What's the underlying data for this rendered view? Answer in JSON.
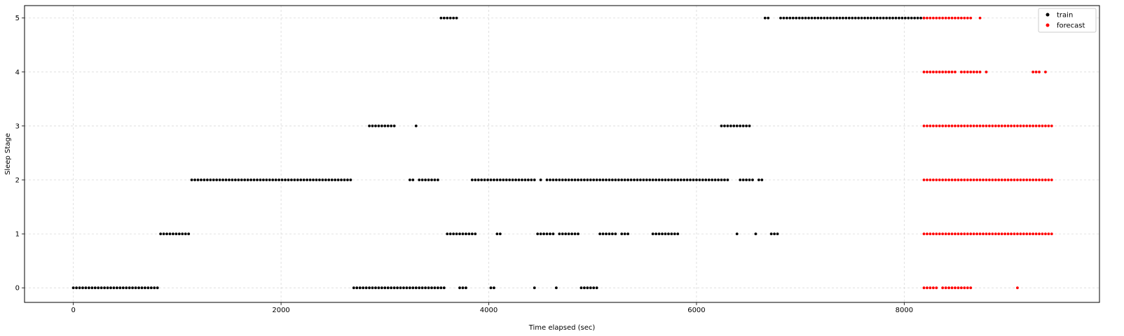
{
  "chart_data": {
    "type": "scatter",
    "title": "",
    "xlabel": "Time elapsed (sec)",
    "ylabel": "Sleep Stage",
    "xlim": [
      -470,
      9880
    ],
    "ylim": [
      -0.27,
      5.23
    ],
    "xticks": [
      0,
      2000,
      4000,
      6000,
      8000
    ],
    "yticks": [
      0,
      1,
      2,
      3,
      4,
      5
    ],
    "xtick_labels": [
      "0",
      "2000",
      "4000",
      "6000",
      "8000"
    ],
    "ytick_labels": [
      "0",
      "1",
      "2",
      "3",
      "4",
      "5"
    ],
    "grid": true,
    "legend_position": "top-right",
    "series": [
      {
        "name": "train",
        "color": "#000000",
        "segments": [
          {
            "y": 0,
            "x_start": 0,
            "x_end": 810,
            "step": 30
          },
          {
            "y": 1,
            "x_start": 840,
            "x_end": 1110,
            "step": 30
          },
          {
            "y": 2,
            "x_start": 1140,
            "x_end": 2670,
            "step": 30
          },
          {
            "y": 0,
            "x_start": 2700,
            "x_end": 3570,
            "step": 30
          },
          {
            "y": 3,
            "x_start": 2850,
            "x_end": 3090,
            "step": 30
          },
          {
            "y": 3,
            "x_start": 3300,
            "x_end": 3300,
            "step": 30
          },
          {
            "y": 2,
            "x_start": 3240,
            "x_end": 3270,
            "step": 30
          },
          {
            "y": 2,
            "x_start": 3330,
            "x_end": 3510,
            "step": 30
          },
          {
            "y": 5,
            "x_start": 3540,
            "x_end": 3690,
            "step": 30
          },
          {
            "y": 1,
            "x_start": 3600,
            "x_end": 3870,
            "step": 30
          },
          {
            "y": 0,
            "x_start": 3720,
            "x_end": 3780,
            "step": 30
          },
          {
            "y": 2,
            "x_start": 3840,
            "x_end": 4440,
            "step": 30
          },
          {
            "y": 0,
            "x_start": 4020,
            "x_end": 4050,
            "step": 30
          },
          {
            "y": 1,
            "x_start": 4080,
            "x_end": 4110,
            "step": 30
          },
          {
            "y": 0,
            "x_start": 4440,
            "x_end": 4440,
            "step": 30
          },
          {
            "y": 1,
            "x_start": 4470,
            "x_end": 4620,
            "step": 30
          },
          {
            "y": 2,
            "x_start": 4500,
            "x_end": 4500,
            "step": 30
          },
          {
            "y": 2,
            "x_start": 4560,
            "x_end": 6300,
            "step": 30
          },
          {
            "y": 0,
            "x_start": 4650,
            "x_end": 4650,
            "step": 30
          },
          {
            "y": 1,
            "x_start": 4680,
            "x_end": 4860,
            "step": 30
          },
          {
            "y": 0,
            "x_start": 4890,
            "x_end": 5040,
            "step": 30
          },
          {
            "y": 1,
            "x_start": 5070,
            "x_end": 5220,
            "step": 30
          },
          {
            "y": 1,
            "x_start": 5280,
            "x_end": 5340,
            "step": 30
          },
          {
            "y": 1,
            "x_start": 5580,
            "x_end": 5820,
            "step": 30
          },
          {
            "y": 3,
            "x_start": 6240,
            "x_end": 6510,
            "step": 30
          },
          {
            "y": 1,
            "x_start": 6390,
            "x_end": 6390,
            "step": 30
          },
          {
            "y": 2,
            "x_start": 6420,
            "x_end": 6540,
            "step": 30
          },
          {
            "y": 1,
            "x_start": 6570,
            "x_end": 6570,
            "step": 30
          },
          {
            "y": 2,
            "x_start": 6600,
            "x_end": 6630,
            "step": 30
          },
          {
            "y": 5,
            "x_start": 6660,
            "x_end": 6690,
            "step": 30
          },
          {
            "y": 1,
            "x_start": 6720,
            "x_end": 6780,
            "step": 30
          },
          {
            "y": 5,
            "x_start": 6810,
            "x_end": 8190,
            "step": 30
          }
        ]
      },
      {
        "name": "forecast",
        "color": "#ff0000",
        "segments": [
          {
            "y": 1,
            "x_start": 8190,
            "x_end": 9420,
            "step": 30
          },
          {
            "y": 2,
            "x_start": 8190,
            "x_end": 9420,
            "step": 30
          },
          {
            "y": 3,
            "x_start": 8190,
            "x_end": 9420,
            "step": 30
          },
          {
            "y": 4,
            "x_start": 8190,
            "x_end": 8280,
            "step": 30
          },
          {
            "y": 4,
            "x_start": 8310,
            "x_end": 8400,
            "step": 30
          },
          {
            "y": 4,
            "x_start": 8430,
            "x_end": 8490,
            "step": 30
          },
          {
            "y": 4,
            "x_start": 8550,
            "x_end": 8730,
            "step": 30
          },
          {
            "y": 4,
            "x_start": 8790,
            "x_end": 8790,
            "step": 30
          },
          {
            "y": 4,
            "x_start": 9240,
            "x_end": 9300,
            "step": 30
          },
          {
            "y": 4,
            "x_start": 9360,
            "x_end": 9360,
            "step": 30
          },
          {
            "y": 5,
            "x_start": 8190,
            "x_end": 8640,
            "step": 30
          },
          {
            "y": 5,
            "x_start": 8730,
            "x_end": 8730,
            "step": 30
          },
          {
            "y": 0,
            "x_start": 8190,
            "x_end": 8310,
            "step": 30
          },
          {
            "y": 0,
            "x_start": 8370,
            "x_end": 8640,
            "step": 30
          },
          {
            "y": 0,
            "x_start": 9090,
            "x_end": 9090,
            "step": 30
          }
        ]
      }
    ]
  }
}
